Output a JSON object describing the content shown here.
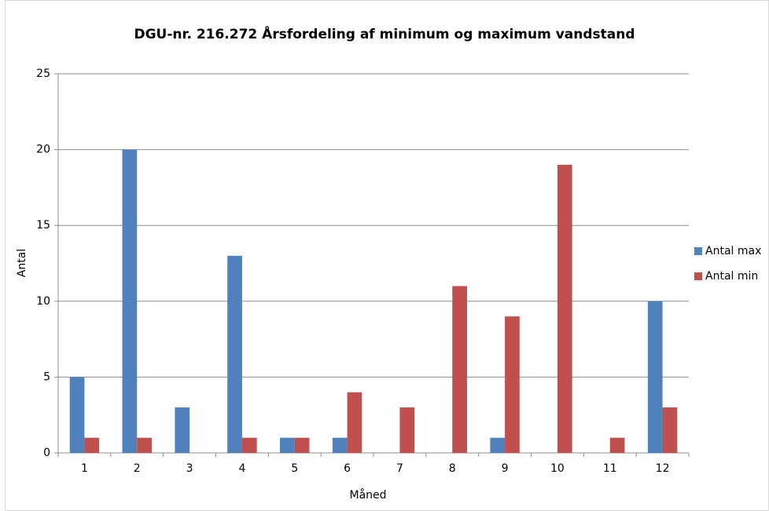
{
  "chart_data": {
    "type": "bar",
    "title": "DGU-nr. 216.272 Årsfordeling af minimum og maximum vandstand",
    "x_label": "Måned",
    "y_label": "Antal",
    "categories": [
      "1",
      "2",
      "3",
      "4",
      "5",
      "6",
      "7",
      "8",
      "9",
      "10",
      "11",
      "12"
    ],
    "series": [
      {
        "name": "Antal max",
        "color": "#4f81bd",
        "values": [
          5,
          20,
          3,
          13,
          1,
          1,
          0,
          0,
          1,
          0,
          0,
          10
        ]
      },
      {
        "name": "Antal min",
        "color": "#c0504d",
        "values": [
          1,
          1,
          0,
          1,
          1,
          4,
          3,
          11,
          9,
          19,
          1,
          3
        ]
      }
    ],
    "ylim": [
      0,
      25
    ],
    "yticks": [
      0,
      5,
      10,
      15,
      20,
      25
    ],
    "grid": true,
    "legend": "right"
  }
}
